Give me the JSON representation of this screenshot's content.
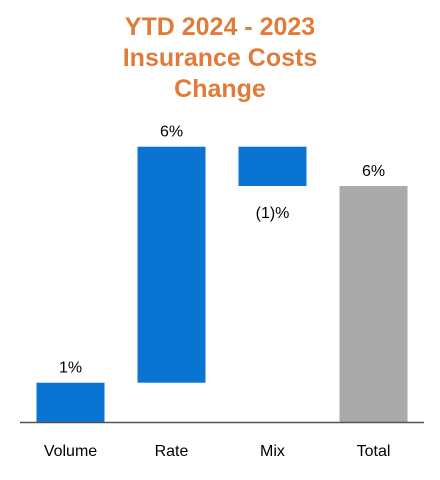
{
  "chart_data": {
    "type": "bar",
    "subtype": "waterfall",
    "title_lines": [
      "YTD 2024 - 2023",
      "Insurance Costs",
      "Change"
    ],
    "categories": [
      "Volume",
      "Rate",
      "Mix",
      "Total"
    ],
    "values": [
      1,
      6,
      -1,
      6
    ],
    "kinds": [
      "delta",
      "delta",
      "delta",
      "total"
    ],
    "data_labels": [
      "1%",
      "6%",
      "(1)%",
      "6%"
    ],
    "colors": {
      "delta": "#0A74D2",
      "total": "#AAAAAA",
      "title": "#E07B39",
      "axis": "#555555"
    },
    "xlabel": "",
    "ylabel": "",
    "grid": false,
    "legend": "none"
  }
}
